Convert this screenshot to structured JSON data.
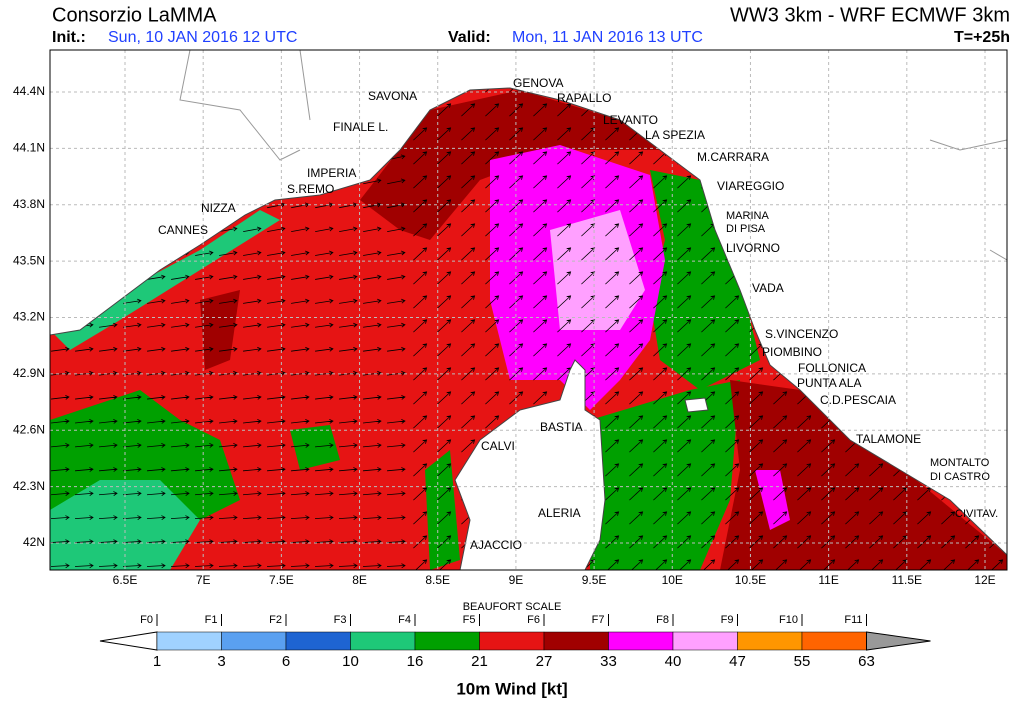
{
  "header": {
    "left_title": "Consorzio LaMMA",
    "right_title": "WW3 3km - WRF ECMWF 3km",
    "init_label": "Init.:",
    "init_value": "Sun, 10 JAN 2016  12 UTC",
    "valid_label": "Valid:",
    "valid_value": "Mon, 11 JAN 2016  13 UTC",
    "lead": "T=+25h"
  },
  "map": {
    "lat_ticks": [
      {
        "value": 44.4,
        "label": "44.4N"
      },
      {
        "value": 44.1,
        "label": "44.1N"
      },
      {
        "value": 43.8,
        "label": "43.8N"
      },
      {
        "value": 43.5,
        "label": "43.5N"
      },
      {
        "value": 43.2,
        "label": "43.2N"
      },
      {
        "value": 42.9,
        "label": "42.9N"
      },
      {
        "value": 42.6,
        "label": "42.6N"
      },
      {
        "value": 42.3,
        "label": "42.3N"
      },
      {
        "value": 42,
        "label": "42N"
      }
    ],
    "lon_ticks": [
      {
        "value": 6.5,
        "label": "6.5E"
      },
      {
        "value": 7,
        "label": "7E"
      },
      {
        "value": 7.5,
        "label": "7.5E"
      },
      {
        "value": 8,
        "label": "8E"
      },
      {
        "value": 8.5,
        "label": "8.5E"
      },
      {
        "value": 9,
        "label": "9E"
      },
      {
        "value": 9.5,
        "label": "9.5E"
      },
      {
        "value": 10,
        "label": "10E"
      },
      {
        "value": 10.5,
        "label": "10.5E"
      },
      {
        "value": 11,
        "label": "11E"
      },
      {
        "value": 11.5,
        "label": "11.5E"
      },
      {
        "value": 12,
        "label": "12E"
      }
    ],
    "cities": [
      "GENOVA",
      "SAVONA",
      "RAPALLO",
      "FINALE L.",
      "LEVANTO",
      "LA SPEZIA",
      "M.CARRARA",
      "IMPERIA",
      "S.REMO",
      "VIAREGGIO",
      "NIZZA",
      "CANNES",
      "MARINA",
      "DI PISA",
      "LIVORNO",
      "VADA",
      "S.VINCENZO",
      "PIOMBINO",
      "FOLLONICA",
      "PUNTA ALA",
      "C.D.PESCAIA",
      "BASTIA",
      "CALVI",
      "TALAMONE",
      "MONTALTO",
      "DI CASTRO",
      "ALERIA",
      "CIVITAV.",
      "AJACCIO"
    ]
  },
  "legend": {
    "scale_title": "BEAUFORT SCALE",
    "forces": [
      "F0",
      "F1",
      "F2",
      "F3",
      "F4",
      "F5",
      "F6",
      "F7",
      "F8",
      "F9",
      "F10",
      "F11"
    ],
    "values": [
      1,
      3,
      6,
      10,
      16,
      21,
      27,
      33,
      40,
      47,
      55,
      63
    ],
    "colors": [
      "#a0d2ff",
      "#5aa0f0",
      "#1e64d2",
      "#1ec878",
      "#00a000",
      "#e61414",
      "#a00000",
      "#ff00ff",
      "#ffa0ff",
      "#ff9600",
      "#ff6400"
    ],
    "unit_label": "10m Wind [kt]"
  }
}
